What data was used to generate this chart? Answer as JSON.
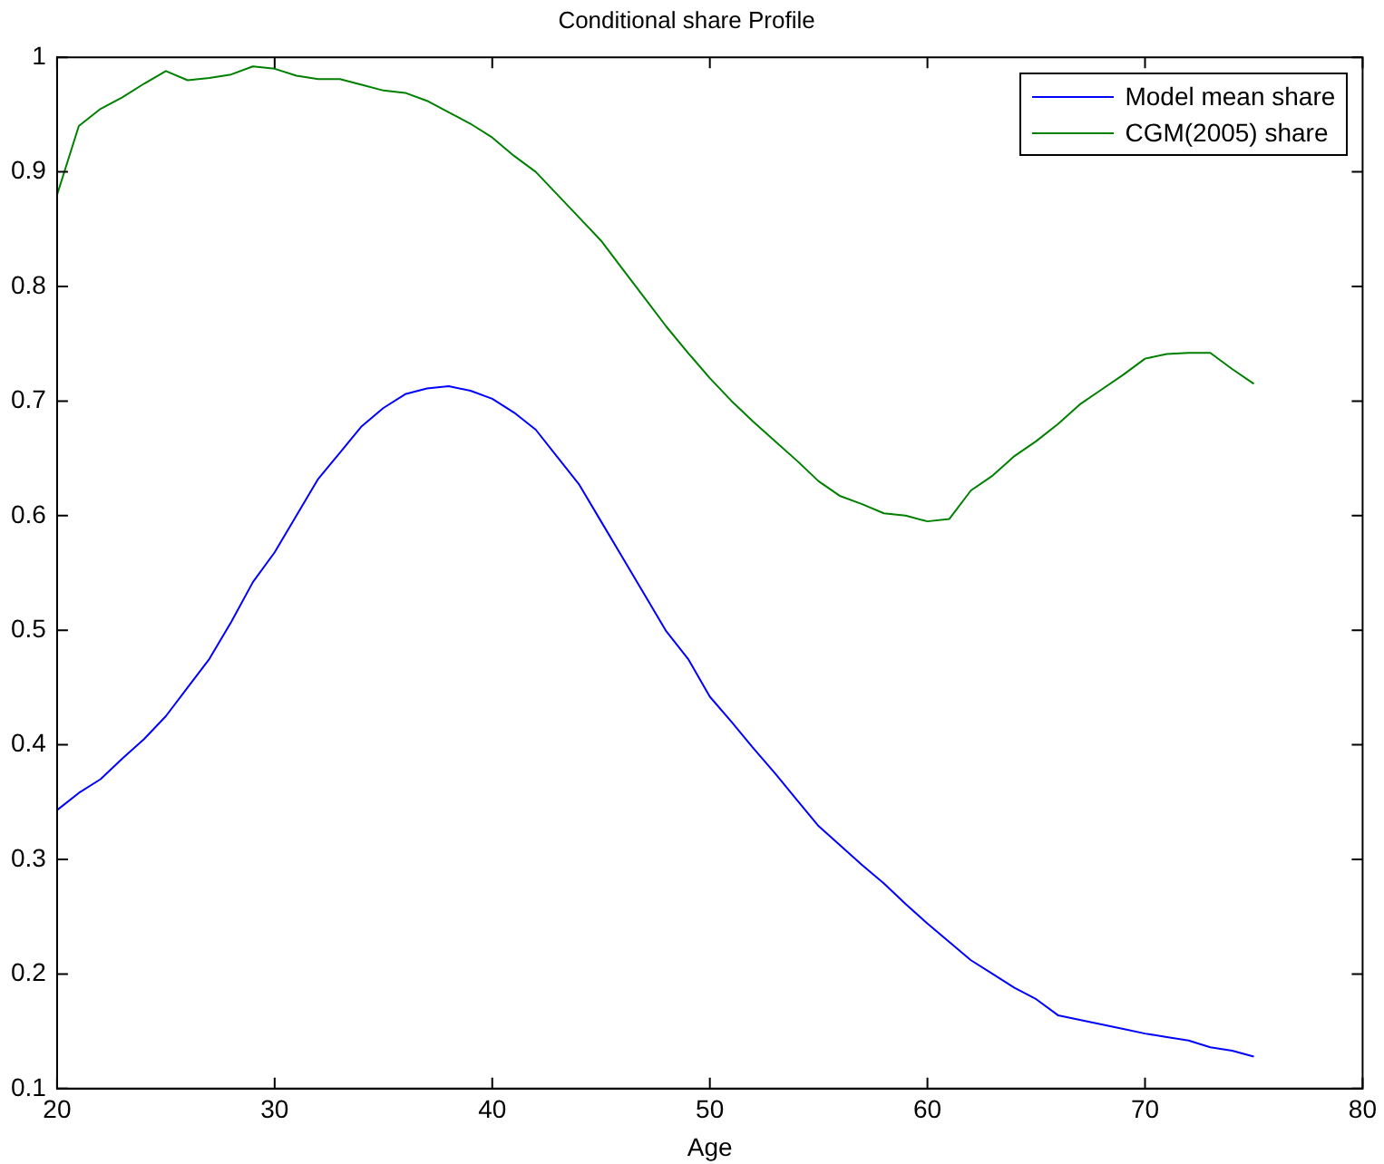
{
  "chart_data": {
    "type": "line",
    "title": "Conditional share Profile",
    "xlabel": "Age",
    "x": [
      20,
      21,
      22,
      23,
      24,
      25,
      26,
      27,
      28,
      29,
      30,
      31,
      32,
      33,
      34,
      35,
      36,
      37,
      38,
      39,
      40,
      41,
      42,
      43,
      44,
      45,
      46,
      47,
      48,
      49,
      50,
      51,
      52,
      53,
      54,
      55,
      56,
      57,
      58,
      59,
      60,
      61,
      62,
      63,
      64,
      65,
      66,
      67,
      68,
      69,
      70,
      71,
      72,
      73,
      74,
      75
    ],
    "series": [
      {
        "name": "Model mean share",
        "color": "#0000ff",
        "values": [
          0.343,
          0.358,
          0.37,
          0.388,
          0.405,
          0.425,
          0.45,
          0.475,
          0.507,
          0.542,
          0.568,
          0.6,
          0.632,
          0.655,
          0.678,
          0.694,
          0.706,
          0.711,
          0.713,
          0.709,
          0.702,
          0.69,
          0.675,
          0.651,
          0.627,
          0.595,
          0.563,
          0.531,
          0.499,
          0.475,
          0.442,
          0.42,
          0.397,
          0.375,
          0.352,
          0.329,
          0.312,
          0.295,
          0.279,
          0.261,
          0.244,
          0.228,
          0.212,
          0.2,
          0.188,
          0.178,
          0.164,
          0.16,
          0.156,
          0.152,
          0.148,
          0.145,
          0.142,
          0.136,
          0.133,
          0.128
        ]
      },
      {
        "name": "CGM(2005) share",
        "color": "#008000",
        "values": [
          0.88,
          0.94,
          0.955,
          0.965,
          0.977,
          0.988,
          0.98,
          0.982,
          0.985,
          0.992,
          0.99,
          0.984,
          0.981,
          0.981,
          0.976,
          0.971,
          0.969,
          0.962,
          0.952,
          0.942,
          0.93,
          0.914,
          0.9,
          0.88,
          0.86,
          0.84,
          0.815,
          0.79,
          0.765,
          0.742,
          0.72,
          0.7,
          0.682,
          0.665,
          0.648,
          0.63,
          0.617,
          0.61,
          0.602,
          0.6,
          0.595,
          0.597,
          0.622,
          0.635,
          0.652,
          0.665,
          0.68,
          0.697,
          0.71,
          0.723,
          0.737,
          0.741,
          0.742,
          0.742,
          0.728,
          0.715
        ]
      }
    ],
    "xlim": [
      20,
      80
    ],
    "xticks": [
      20,
      30,
      40,
      50,
      60,
      70,
      80
    ],
    "ylim": [
      0.1,
      1
    ],
    "yticks": [
      0.1,
      0.2,
      0.3,
      0.4,
      0.5,
      0.6,
      0.7,
      0.8,
      0.9,
      1
    ],
    "legend": "top right",
    "marker": "none",
    "line_style": "solid"
  }
}
